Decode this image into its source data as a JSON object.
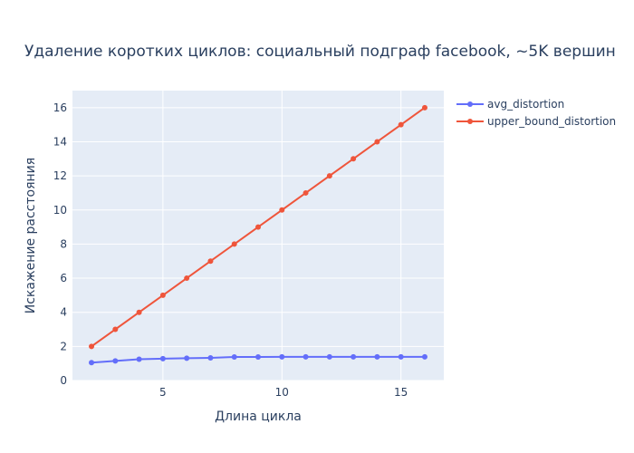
{
  "chart_data": {
    "type": "line",
    "title": "Удаление коротких циклов: социальный подграф facebook, ~5K вершин",
    "xlabel": "Длина цикла",
    "ylabel": "Искажение расстояния",
    "xlim": [
      1.2,
      16.8
    ],
    "ylim": [
      0,
      17
    ],
    "xticks": [
      5,
      10,
      15
    ],
    "yticks": [
      0,
      2,
      4,
      6,
      8,
      10,
      12,
      14,
      16
    ],
    "grid": true,
    "legend_position": "top-right",
    "x": [
      2,
      3,
      4,
      5,
      6,
      7,
      8,
      9,
      10,
      11,
      12,
      13,
      14,
      15,
      16
    ],
    "series": [
      {
        "name": "avg_distortion",
        "color": "#636efa",
        "values": [
          1.05,
          1.15,
          1.25,
          1.28,
          1.31,
          1.33,
          1.38,
          1.38,
          1.39,
          1.39,
          1.39,
          1.39,
          1.39,
          1.39,
          1.39
        ]
      },
      {
        "name": "upper_bound_distortion",
        "color": "#ef553b",
        "values": [
          2,
          3,
          4,
          5,
          6,
          7,
          8,
          9,
          10,
          11,
          12,
          13,
          14,
          15,
          16
        ]
      }
    ]
  }
}
